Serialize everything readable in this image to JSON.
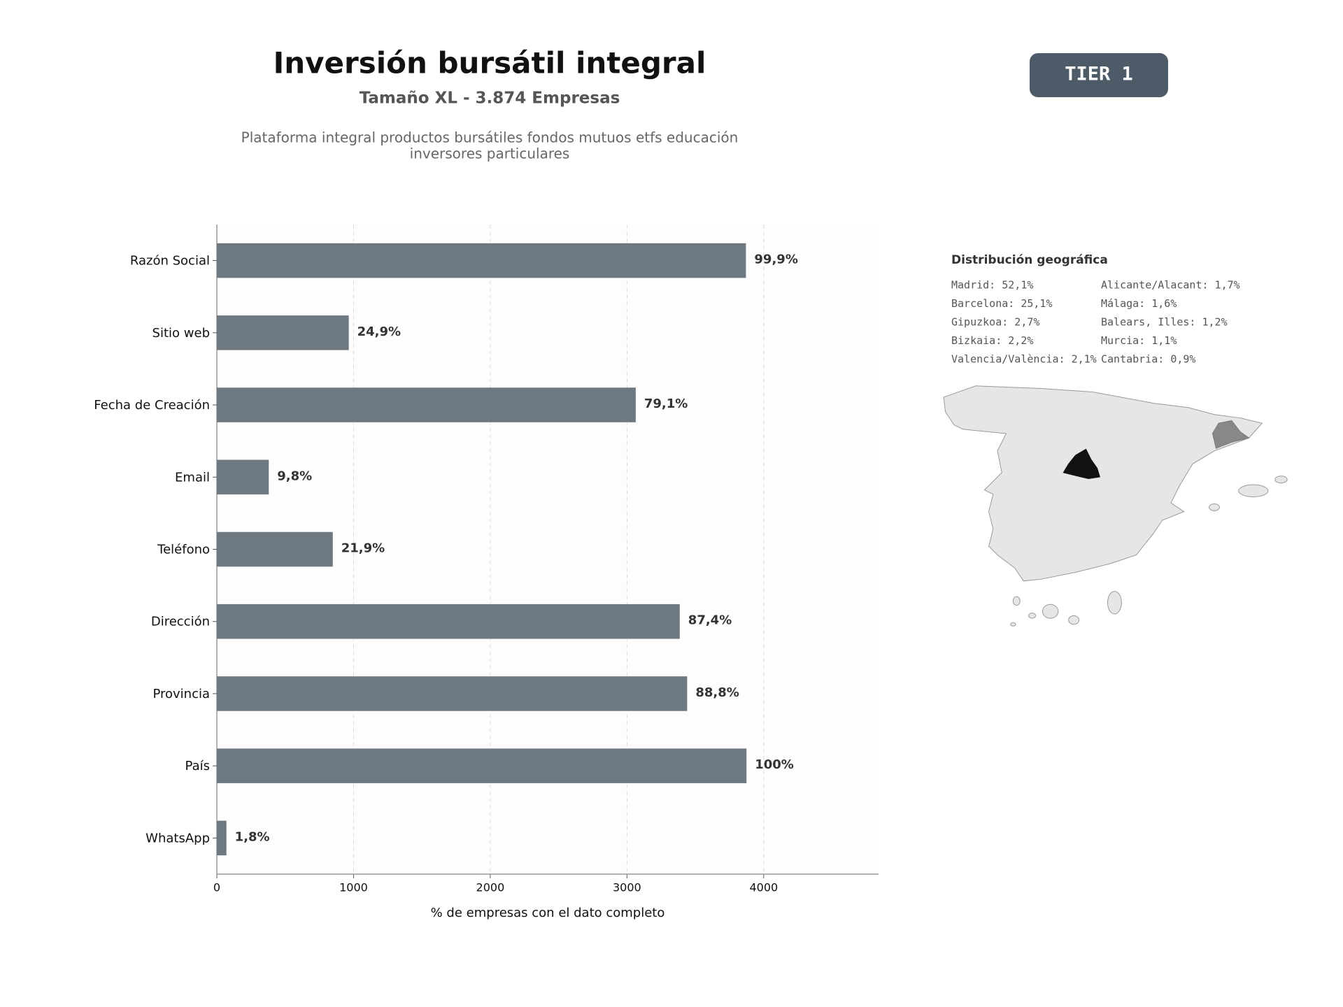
{
  "chart_data": {
    "type": "bar",
    "orientation": "horizontal",
    "title": "Inversión bursátil integral",
    "subtitle": "Tamaño XL - 3.874 Empresas",
    "description": [
      "Plataforma integral productos bursátiles fondos mutuos etfs educación",
      "inversores particulares"
    ],
    "badge": "TIER 1",
    "xlabel": "% de empresas con el dato completo",
    "categories": [
      "Razón Social",
      "Sitio web",
      "Fecha de Creación",
      "Email",
      "Teléfono",
      "Dirección",
      "Provincia",
      "País",
      "WhatsApp"
    ],
    "values": [
      3870,
      965,
      3064,
      380,
      848,
      3386,
      3440,
      3874,
      70
    ],
    "value_labels": [
      "99,9%",
      "24,9%",
      "79,1%",
      "9,8%",
      "21,9%",
      "87,4%",
      "88,8%",
      "100%",
      "1,8%"
    ],
    "color": "#6e7881",
    "xlim": [
      0,
      4840
    ],
    "xticks": [
      0,
      1000,
      2000,
      3000,
      4000
    ],
    "grid": true,
    "geo": {
      "title": "Distribución geográfica",
      "items": [
        "Madrid: 52,1%",
        "Barcelona: 25,1%",
        "Gipuzkoa: 2,7%",
        "Bizkaia: 2,2%",
        "Valencia/València: 2,1%",
        "Alicante/Alacant: 1,7%",
        "Málaga: 1,6%",
        "Balears, Illes: 1,2%",
        "Murcia: 1,1%",
        "Cantabria: 0,9%"
      ]
    }
  }
}
